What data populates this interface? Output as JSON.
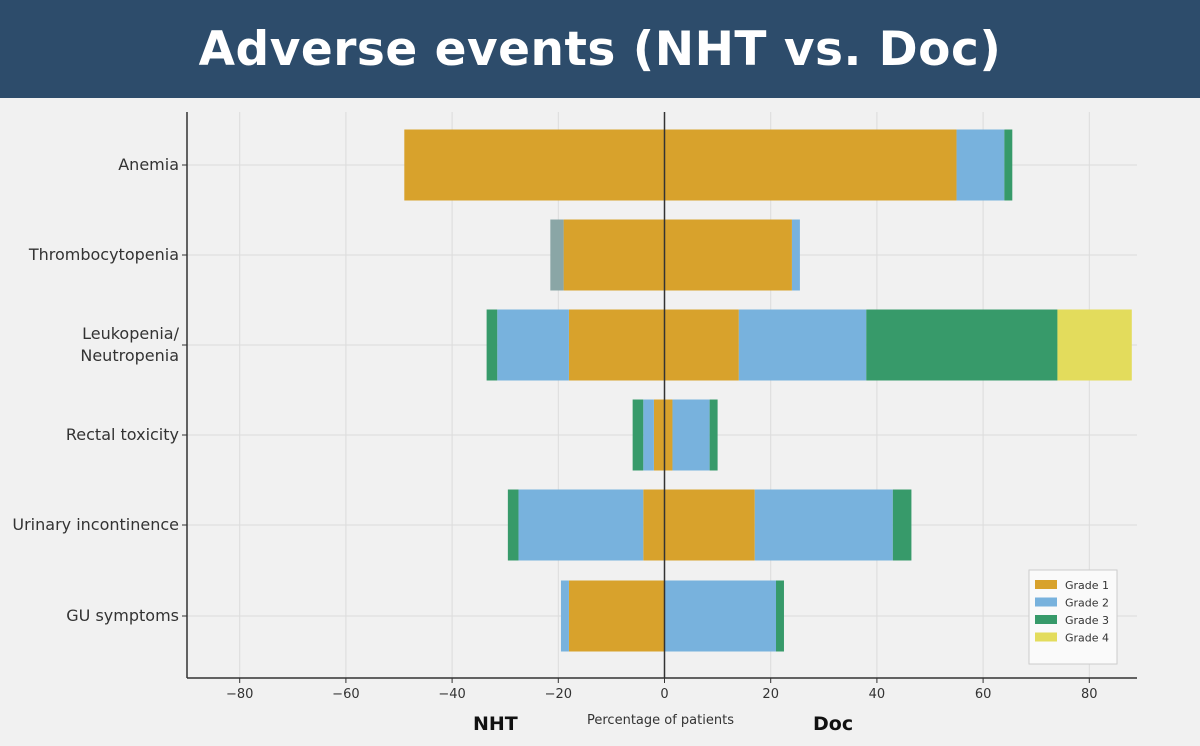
{
  "title": "Adverse events (NHT vs. Doc)",
  "side_labels": {
    "left": "NHT",
    "right": "Doc"
  },
  "colors": {
    "grade1": "#d8a22c",
    "grade2": "#78b2dd",
    "grade3": "#379a6a",
    "grade4": "#e3dc5c",
    "thrombo_left_grade2": "#8aa6a6"
  },
  "chart_data": {
    "type": "bar",
    "orientation": "horizontal-diverging",
    "title": "Adverse events (NHT vs. Doc)",
    "xlabel": "Percentage of patients",
    "ylabel": "",
    "xlim": [
      -90,
      90
    ],
    "xticks": [
      -80,
      -60,
      -40,
      -20,
      0,
      20,
      40,
      60,
      80
    ],
    "xtick_labels": [
      "−80",
      "−60",
      "−40",
      "−20",
      "0",
      "20",
      "40",
      "60",
      "80"
    ],
    "grid": true,
    "categories": [
      "Anemia",
      "Thrombocytopenia",
      "Leukopenia/\nNeutropenia",
      "Rectal toxicity",
      "Urinary incontinence",
      "GU symptoms"
    ],
    "legend": {
      "placement": "bottom-right",
      "entries": [
        "Grade 1",
        "Grade 2",
        "Grade 3",
        "Grade 4"
      ]
    },
    "series": [
      {
        "name": "Grade 1",
        "values_nht": [
          49,
          19,
          18,
          2,
          4,
          18
        ],
        "values_doc": [
          55,
          24,
          14,
          1.5,
          17,
          0
        ]
      },
      {
        "name": "Grade 2",
        "values_nht": [
          0,
          2.5,
          13.5,
          2,
          23.5,
          1.5
        ],
        "values_doc": [
          9,
          1.5,
          24,
          7,
          26,
          21
        ]
      },
      {
        "name": "Grade 3",
        "values_nht": [
          0,
          0,
          2,
          2,
          2,
          0
        ],
        "values_doc": [
          1.5,
          0,
          36,
          1.5,
          3.5,
          1.5
        ]
      },
      {
        "name": "Grade 4",
        "values_nht": [
          0,
          0,
          0,
          0,
          0,
          0
        ],
        "values_doc": [
          0,
          0,
          14,
          0,
          0,
          0
        ]
      }
    ]
  }
}
